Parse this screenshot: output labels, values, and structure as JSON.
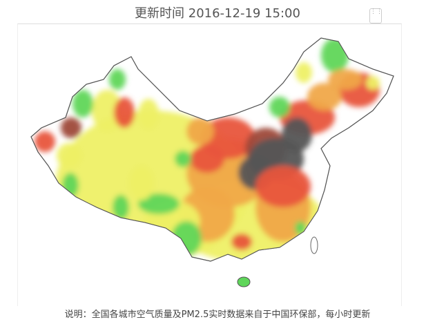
{
  "header": {
    "title": "更新时间 2016-12-19 15:00",
    "share_icon": "share-icon"
  },
  "footer": {
    "note": "说明：全国各城市空气质量及PM2.5实时数据来自于中国环保部，每小时更新"
  },
  "map": {
    "region": "China",
    "level_colors": {
      "good": "#5fd65a",
      "moderate": "#eef065",
      "light": "#f0a848",
      "medium": "#e8553c",
      "heavy": "#9e4a3a",
      "severe": "#555555"
    }
  }
}
